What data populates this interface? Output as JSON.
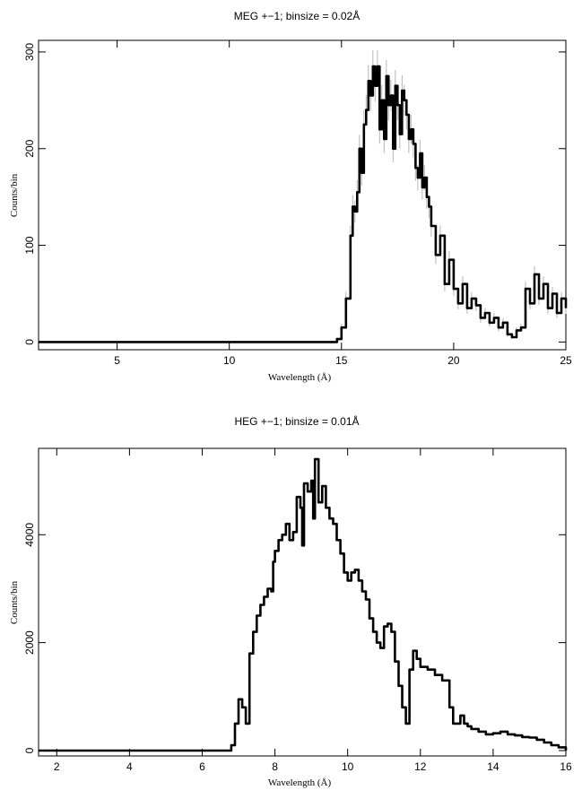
{
  "chart_data": [
    {
      "type": "line",
      "title": "MEG +−1; binsize = 0.02Å",
      "xlabel": "Wavelength (Å)",
      "ylabel": "Counts/bin",
      "xlim": [
        1.5,
        25
      ],
      "ylim": [
        -8,
        312
      ],
      "xticks": [
        5,
        10,
        15,
        20,
        25
      ],
      "yticks": [
        0,
        100,
        200,
        300
      ],
      "grid": false,
      "series": [
        {
          "x": [
            1.5,
            14.6,
            14.8,
            15.0,
            15.2,
            15.4,
            15.5,
            15.6,
            15.7,
            15.8,
            15.9,
            16.0,
            16.1,
            16.2,
            16.3,
            16.4,
            16.5,
            16.6,
            16.7,
            16.8,
            16.9,
            17.0,
            17.1,
            17.2,
            17.3,
            17.4,
            17.5,
            17.6,
            17.7,
            17.8,
            17.9,
            18.0,
            18.1,
            18.2,
            18.3,
            18.4,
            18.5,
            18.6,
            18.7,
            18.8,
            18.9,
            19.0,
            19.2,
            19.4,
            19.6,
            19.8,
            20.0,
            20.2,
            20.4,
            20.6,
            20.8,
            21.0,
            21.2,
            21.4,
            21.6,
            21.8,
            22.0,
            22.2,
            22.4,
            22.6,
            22.8,
            23.0,
            23.2,
            23.4,
            23.6,
            23.8,
            24.0,
            24.2,
            24.4,
            24.6,
            24.8,
            25.0
          ],
          "y": [
            0,
            0,
            3,
            15,
            45,
            110,
            140,
            135,
            155,
            200,
            175,
            225,
            240,
            270,
            255,
            285,
            265,
            285,
            220,
            250,
            210,
            275,
            245,
            255,
            200,
            265,
            245,
            215,
            260,
            250,
            235,
            210,
            220,
            205,
            180,
            170,
            195,
            160,
            170,
            150,
            140,
            120,
            90,
            110,
            60,
            85,
            55,
            40,
            60,
            35,
            45,
            38,
            25,
            30,
            20,
            25,
            15,
            20,
            8,
            5,
            12,
            15,
            55,
            40,
            70,
            45,
            60,
            35,
            50,
            30,
            45,
            35
          ]
        }
      ]
    },
    {
      "type": "line",
      "title": "HEG +−1; binsize = 0.01Å",
      "xlabel": "Wavelength (Å)",
      "ylabel": "Counts/bin",
      "xlim": [
        1.5,
        16
      ],
      "ylim": [
        -100,
        5600
      ],
      "xticks": [
        2,
        4,
        6,
        8,
        10,
        12,
        14,
        16
      ],
      "yticks": [
        0,
        2000,
        4000
      ],
      "grid": false,
      "series": [
        {
          "x": [
            1.5,
            6.7,
            6.8,
            6.9,
            7.0,
            7.1,
            7.2,
            7.3,
            7.4,
            7.5,
            7.6,
            7.7,
            7.8,
            7.9,
            7.95,
            8.0,
            8.1,
            8.2,
            8.3,
            8.4,
            8.5,
            8.6,
            8.7,
            8.75,
            8.8,
            8.9,
            9.0,
            9.05,
            9.1,
            9.2,
            9.3,
            9.4,
            9.5,
            9.6,
            9.7,
            9.8,
            9.9,
            10.0,
            10.1,
            10.2,
            10.3,
            10.4,
            10.5,
            10.6,
            10.7,
            10.8,
            10.9,
            11.0,
            11.1,
            11.2,
            11.3,
            11.4,
            11.5,
            11.6,
            11.7,
            11.8,
            11.9,
            12.0,
            12.2,
            12.4,
            12.6,
            12.8,
            12.9,
            13.0,
            13.1,
            13.2,
            13.3,
            13.4,
            13.6,
            13.8,
            14.0,
            14.2,
            14.4,
            14.6,
            14.8,
            15.0,
            15.2,
            15.4,
            15.6,
            15.8,
            16.0
          ],
          "y": [
            0,
            0,
            100,
            500,
            950,
            800,
            500,
            1800,
            2200,
            2500,
            2700,
            2850,
            3000,
            2950,
            3500,
            3700,
            3900,
            4000,
            4200,
            3900,
            4050,
            4700,
            4500,
            3800,
            4950,
            4800,
            5000,
            4300,
            5400,
            4600,
            4900,
            4500,
            4300,
            4200,
            3900,
            3650,
            3300,
            3150,
            3300,
            3350,
            3150,
            2950,
            2800,
            2450,
            2200,
            2000,
            1900,
            2300,
            2350,
            2200,
            1650,
            1200,
            800,
            500,
            1500,
            1850,
            1700,
            1550,
            1500,
            1400,
            1300,
            800,
            500,
            500,
            650,
            500,
            450,
            400,
            350,
            300,
            320,
            350,
            300,
            280,
            250,
            240,
            200,
            150,
            100,
            60,
            0
          ]
        }
      ]
    }
  ]
}
